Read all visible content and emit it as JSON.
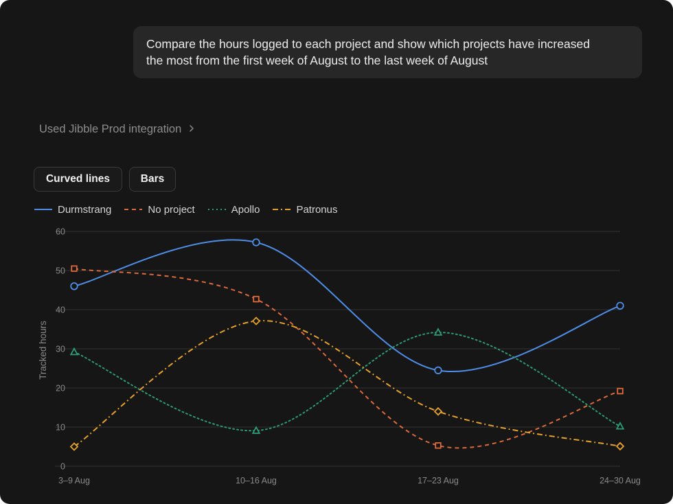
{
  "prompt": {
    "line1": "Compare the hours logged to each project and show which projects have increased",
    "line2": "the most from the first week of August to the last week of August"
  },
  "integration": {
    "label": "Used Jibble Prod integration"
  },
  "view_toggle": {
    "curved_label": "Curved lines",
    "bars_label": "Bars"
  },
  "colors": {
    "background": "#161616",
    "durmstrang": "#4f8ee8",
    "no_project": "#de6a3c",
    "apollo": "#2c9c74",
    "patronus": "#e6a229",
    "grid": "#333333"
  },
  "chart_data": {
    "type": "line",
    "curve": "smooth",
    "categories": [
      "3–9 Aug",
      "10–16 Aug",
      "17–23 Aug",
      "24–30 Aug"
    ],
    "ylabel": "Tracked hours",
    "xlabel": "",
    "ylim": [
      0,
      60
    ],
    "yticks": [
      0,
      10,
      20,
      30,
      40,
      50,
      60
    ],
    "grid": true,
    "legend_position": "top-left",
    "series": [
      {
        "key": "durmstrang",
        "name": "Durmstrang",
        "values": [
          46,
          57.2,
          24.5,
          41
        ],
        "marker": "circle",
        "dash": "solid"
      },
      {
        "key": "no_project",
        "name": "No project",
        "values": [
          50.5,
          42.7,
          5.3,
          19.2
        ],
        "marker": "square",
        "dash": "dashed"
      },
      {
        "key": "apollo",
        "name": "Apollo",
        "values": [
          29.2,
          9.1,
          34.2,
          10.2
        ],
        "marker": "triangle",
        "dash": "dotted"
      },
      {
        "key": "patronus",
        "name": "Patronus",
        "values": [
          5,
          37.1,
          14,
          5.1
        ],
        "marker": "diamond",
        "dash": "dashdot"
      }
    ]
  }
}
